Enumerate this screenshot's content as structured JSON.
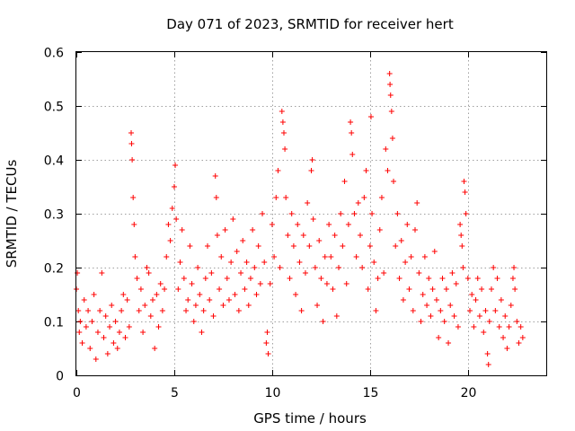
{
  "chart_data": {
    "type": "scatter",
    "title": "Day 071 of 2023, SRMTID for receiver hert",
    "xlabel": "GPS time / hours",
    "ylabel": "SRMTID / TECUs",
    "xlim": [
      0,
      24
    ],
    "ylim": [
      0,
      0.6
    ],
    "x_ticks": [
      0,
      5,
      10,
      15,
      20
    ],
    "x_tick_labels": [
      "0",
      "5",
      "10",
      "15",
      "20"
    ],
    "y_ticks": [
      0,
      0.1,
      0.2,
      0.3,
      0.4,
      0.5,
      0.6
    ],
    "y_tick_labels": [
      "0",
      "0.1",
      "0.2",
      "0.3",
      "0.4",
      "0.5",
      "0.6"
    ],
    "grid": true,
    "marker": "+",
    "marker_color": "#ff0000",
    "series": [
      {
        "name": "SRMTID",
        "points": [
          [
            0.0,
            0.16
          ],
          [
            0.05,
            0.19
          ],
          [
            0.1,
            0.12
          ],
          [
            0.15,
            0.08
          ],
          [
            0.2,
            0.1
          ],
          [
            0.3,
            0.06
          ],
          [
            0.4,
            0.14
          ],
          [
            0.5,
            0.09
          ],
          [
            0.6,
            0.12
          ],
          [
            0.7,
            0.05
          ],
          [
            0.8,
            0.1
          ],
          [
            0.9,
            0.15
          ],
          [
            1.0,
            0.03
          ],
          [
            1.1,
            0.08
          ],
          [
            1.2,
            0.12
          ],
          [
            1.3,
            0.19
          ],
          [
            1.4,
            0.07
          ],
          [
            1.5,
            0.11
          ],
          [
            1.6,
            0.04
          ],
          [
            1.7,
            0.09
          ],
          [
            1.8,
            0.13
          ],
          [
            1.9,
            0.06
          ],
          [
            2.0,
            0.1
          ],
          [
            2.1,
            0.05
          ],
          [
            2.2,
            0.08
          ],
          [
            2.3,
            0.12
          ],
          [
            2.4,
            0.15
          ],
          [
            2.5,
            0.07
          ],
          [
            2.6,
            0.14
          ],
          [
            2.7,
            0.09
          ],
          [
            2.8,
            0.45
          ],
          [
            2.82,
            0.43
          ],
          [
            2.85,
            0.4
          ],
          [
            2.9,
            0.33
          ],
          [
            2.95,
            0.28
          ],
          [
            3.0,
            0.22
          ],
          [
            3.1,
            0.18
          ],
          [
            3.2,
            0.12
          ],
          [
            3.3,
            0.16
          ],
          [
            3.4,
            0.08
          ],
          [
            3.5,
            0.13
          ],
          [
            3.6,
            0.2
          ],
          [
            3.7,
            0.19
          ],
          [
            3.8,
            0.11
          ],
          [
            3.9,
            0.14
          ],
          [
            4.0,
            0.05
          ],
          [
            4.1,
            0.15
          ],
          [
            4.2,
            0.09
          ],
          [
            4.3,
            0.17
          ],
          [
            4.4,
            0.12
          ],
          [
            4.5,
            0.16
          ],
          [
            4.6,
            0.22
          ],
          [
            4.7,
            0.28
          ],
          [
            4.8,
            0.25
          ],
          [
            4.9,
            0.31
          ],
          [
            5.0,
            0.35
          ],
          [
            5.05,
            0.39
          ],
          [
            5.1,
            0.29
          ],
          [
            5.2,
            0.16
          ],
          [
            5.3,
            0.21
          ],
          [
            5.4,
            0.27
          ],
          [
            5.5,
            0.18
          ],
          [
            5.6,
            0.12
          ],
          [
            5.7,
            0.14
          ],
          [
            5.8,
            0.24
          ],
          [
            5.9,
            0.17
          ],
          [
            6.0,
            0.1
          ],
          [
            6.1,
            0.13
          ],
          [
            6.2,
            0.2
          ],
          [
            6.3,
            0.15
          ],
          [
            6.4,
            0.08
          ],
          [
            6.5,
            0.12
          ],
          [
            6.6,
            0.18
          ],
          [
            6.7,
            0.24
          ],
          [
            6.8,
            0.14
          ],
          [
            6.9,
            0.19
          ],
          [
            7.0,
            0.11
          ],
          [
            7.1,
            0.37
          ],
          [
            7.15,
            0.33
          ],
          [
            7.2,
            0.26
          ],
          [
            7.3,
            0.16
          ],
          [
            7.4,
            0.22
          ],
          [
            7.5,
            0.13
          ],
          [
            7.6,
            0.27
          ],
          [
            7.7,
            0.18
          ],
          [
            7.8,
            0.14
          ],
          [
            7.9,
            0.21
          ],
          [
            8.0,
            0.29
          ],
          [
            8.1,
            0.15
          ],
          [
            8.2,
            0.23
          ],
          [
            8.3,
            0.12
          ],
          [
            8.4,
            0.19
          ],
          [
            8.5,
            0.25
          ],
          [
            8.6,
            0.16
          ],
          [
            8.7,
            0.21
          ],
          [
            8.8,
            0.13
          ],
          [
            8.9,
            0.18
          ],
          [
            9.0,
            0.27
          ],
          [
            9.1,
            0.2
          ],
          [
            9.2,
            0.15
          ],
          [
            9.3,
            0.24
          ],
          [
            9.4,
            0.17
          ],
          [
            9.5,
            0.3
          ],
          [
            9.6,
            0.21
          ],
          [
            9.7,
            0.06
          ],
          [
            9.75,
            0.08
          ],
          [
            9.8,
            0.04
          ],
          [
            9.9,
            0.17
          ],
          [
            10.0,
            0.28
          ],
          [
            10.1,
            0.22
          ],
          [
            10.2,
            0.33
          ],
          [
            10.3,
            0.38
          ],
          [
            10.4,
            0.2
          ],
          [
            10.5,
            0.49
          ],
          [
            10.55,
            0.47
          ],
          [
            10.6,
            0.45
          ],
          [
            10.65,
            0.42
          ],
          [
            10.7,
            0.33
          ],
          [
            10.8,
            0.26
          ],
          [
            10.9,
            0.18
          ],
          [
            11.0,
            0.3
          ],
          [
            11.1,
            0.24
          ],
          [
            11.2,
            0.15
          ],
          [
            11.3,
            0.28
          ],
          [
            11.4,
            0.21
          ],
          [
            11.5,
            0.12
          ],
          [
            11.6,
            0.26
          ],
          [
            11.7,
            0.19
          ],
          [
            11.8,
            0.32
          ],
          [
            11.9,
            0.24
          ],
          [
            12.0,
            0.38
          ],
          [
            12.05,
            0.4
          ],
          [
            12.1,
            0.29
          ],
          [
            12.2,
            0.2
          ],
          [
            12.3,
            0.13
          ],
          [
            12.4,
            0.25
          ],
          [
            12.5,
            0.18
          ],
          [
            12.6,
            0.1
          ],
          [
            12.7,
            0.22
          ],
          [
            12.8,
            0.17
          ],
          [
            12.9,
            0.28
          ],
          [
            13.0,
            0.22
          ],
          [
            13.1,
            0.16
          ],
          [
            13.2,
            0.26
          ],
          [
            13.3,
            0.11
          ],
          [
            13.4,
            0.2
          ],
          [
            13.5,
            0.3
          ],
          [
            13.6,
            0.24
          ],
          [
            13.7,
            0.36
          ],
          [
            13.8,
            0.17
          ],
          [
            13.9,
            0.28
          ],
          [
            14.0,
            0.47
          ],
          [
            14.05,
            0.45
          ],
          [
            14.1,
            0.41
          ],
          [
            14.2,
            0.3
          ],
          [
            14.3,
            0.22
          ],
          [
            14.4,
            0.32
          ],
          [
            14.5,
            0.26
          ],
          [
            14.6,
            0.2
          ],
          [
            14.7,
            0.33
          ],
          [
            14.8,
            0.38
          ],
          [
            14.9,
            0.16
          ],
          [
            15.0,
            0.24
          ],
          [
            15.05,
            0.48
          ],
          [
            15.1,
            0.3
          ],
          [
            15.2,
            0.21
          ],
          [
            15.3,
            0.12
          ],
          [
            15.4,
            0.18
          ],
          [
            15.5,
            0.27
          ],
          [
            15.6,
            0.33
          ],
          [
            15.7,
            0.19
          ],
          [
            15.8,
            0.42
          ],
          [
            15.9,
            0.38
          ],
          [
            16.0,
            0.56
          ],
          [
            16.02,
            0.54
          ],
          [
            16.05,
            0.52
          ],
          [
            16.1,
            0.49
          ],
          [
            16.15,
            0.44
          ],
          [
            16.2,
            0.36
          ],
          [
            16.3,
            0.24
          ],
          [
            16.4,
            0.3
          ],
          [
            16.5,
            0.18
          ],
          [
            16.6,
            0.25
          ],
          [
            16.7,
            0.14
          ],
          [
            16.8,
            0.21
          ],
          [
            16.9,
            0.28
          ],
          [
            17.0,
            0.16
          ],
          [
            17.1,
            0.22
          ],
          [
            17.2,
            0.12
          ],
          [
            17.3,
            0.27
          ],
          [
            17.4,
            0.32
          ],
          [
            17.5,
            0.19
          ],
          [
            17.6,
            0.1
          ],
          [
            17.7,
            0.15
          ],
          [
            17.8,
            0.22
          ],
          [
            17.9,
            0.13
          ],
          [
            18.0,
            0.18
          ],
          [
            18.1,
            0.11
          ],
          [
            18.2,
            0.16
          ],
          [
            18.3,
            0.23
          ],
          [
            18.4,
            0.14
          ],
          [
            18.5,
            0.07
          ],
          [
            18.6,
            0.12
          ],
          [
            18.7,
            0.18
          ],
          [
            18.8,
            0.1
          ],
          [
            18.9,
            0.16
          ],
          [
            19.0,
            0.06
          ],
          [
            19.1,
            0.13
          ],
          [
            19.2,
            0.19
          ],
          [
            19.3,
            0.11
          ],
          [
            19.4,
            0.17
          ],
          [
            19.5,
            0.09
          ],
          [
            19.6,
            0.28
          ],
          [
            19.65,
            0.26
          ],
          [
            19.7,
            0.24
          ],
          [
            19.75,
            0.2
          ],
          [
            19.8,
            0.36
          ],
          [
            19.85,
            0.34
          ],
          [
            19.9,
            0.3
          ],
          [
            20.0,
            0.18
          ],
          [
            20.1,
            0.12
          ],
          [
            20.2,
            0.15
          ],
          [
            20.3,
            0.09
          ],
          [
            20.4,
            0.14
          ],
          [
            20.5,
            0.18
          ],
          [
            20.6,
            0.11
          ],
          [
            20.7,
            0.16
          ],
          [
            20.8,
            0.08
          ],
          [
            20.9,
            0.12
          ],
          [
            21.0,
            0.04
          ],
          [
            21.05,
            0.02
          ],
          [
            21.1,
            0.1
          ],
          [
            21.2,
            0.16
          ],
          [
            21.3,
            0.2
          ],
          [
            21.4,
            0.12
          ],
          [
            21.5,
            0.18
          ],
          [
            21.6,
            0.09
          ],
          [
            21.7,
            0.14
          ],
          [
            21.8,
            0.07
          ],
          [
            21.9,
            0.11
          ],
          [
            22.0,
            0.05
          ],
          [
            22.1,
            0.09
          ],
          [
            22.2,
            0.13
          ],
          [
            22.3,
            0.18
          ],
          [
            22.35,
            0.2
          ],
          [
            22.4,
            0.16
          ],
          [
            22.5,
            0.1
          ],
          [
            22.6,
            0.06
          ],
          [
            22.7,
            0.09
          ],
          [
            22.8,
            0.07
          ]
        ]
      }
    ]
  }
}
